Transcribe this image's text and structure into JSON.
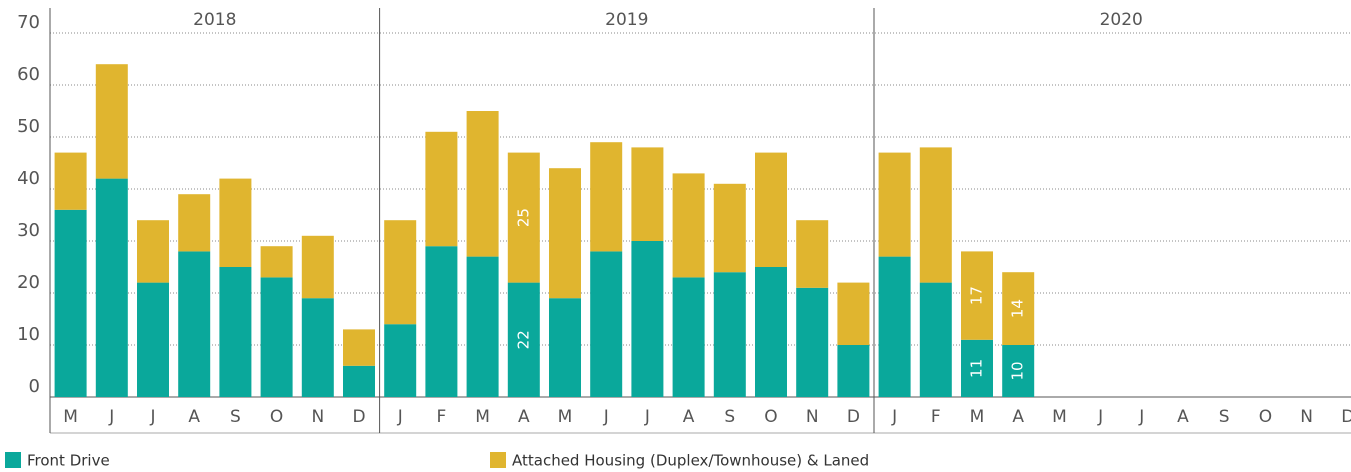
{
  "chart_data": {
    "type": "stacked-bar",
    "facets": [
      {
        "title": "2018",
        "categories": [
          "M",
          "J",
          "J",
          "A",
          "S",
          "O",
          "N",
          "D"
        ]
      },
      {
        "title": "2019",
        "categories": [
          "J",
          "F",
          "M",
          "A",
          "M",
          "J",
          "J",
          "A",
          "S",
          "O",
          "N",
          "D"
        ]
      },
      {
        "title": "2020",
        "categories": [
          "J",
          "F",
          "M",
          "A",
          "M",
          "J",
          "J",
          "A",
          "S",
          "O",
          "N",
          "D"
        ]
      }
    ],
    "series": [
      {
        "name": "Front Drive",
        "color": "#0aa89b",
        "values": [
          [
            36,
            42,
            22,
            28,
            25,
            23,
            19,
            6
          ],
          [
            14,
            29,
            27,
            22,
            19,
            28,
            30,
            23,
            24,
            25,
            21,
            10
          ],
          [
            27,
            22,
            11,
            10,
            null,
            null,
            null,
            null,
            null,
            null,
            null,
            null
          ]
        ],
        "value_labels": [
          [
            null,
            null,
            null,
            null,
            null,
            null,
            null,
            null
          ],
          [
            null,
            null,
            null,
            "22",
            null,
            null,
            null,
            null,
            null,
            null,
            null,
            null
          ],
          [
            null,
            null,
            "11",
            "10",
            null,
            null,
            null,
            null,
            null,
            null,
            null,
            null
          ]
        ]
      },
      {
        "name": "Attached Housing (Duplex/Townhouse) & Laned",
        "color": "#e0b52f",
        "values": [
          [
            11,
            22,
            12,
            11,
            17,
            6,
            12,
            7
          ],
          [
            20,
            22,
            28,
            25,
            25,
            21,
            18,
            20,
            17,
            22,
            13,
            12
          ],
          [
            20,
            26,
            17,
            14,
            null,
            null,
            null,
            null,
            null,
            null,
            null,
            null
          ]
        ],
        "value_labels": [
          [
            null,
            null,
            null,
            null,
            null,
            null,
            null,
            null
          ],
          [
            null,
            null,
            null,
            "25",
            null,
            null,
            null,
            null,
            null,
            null,
            null,
            null
          ],
          [
            null,
            null,
            "17",
            "14",
            null,
            null,
            null,
            null,
            null,
            null,
            null,
            null
          ]
        ]
      }
    ],
    "ylim": [
      0,
      70
    ],
    "yticks": [
      0,
      10,
      20,
      30,
      40,
      50,
      60,
      70
    ],
    "grid": true
  }
}
